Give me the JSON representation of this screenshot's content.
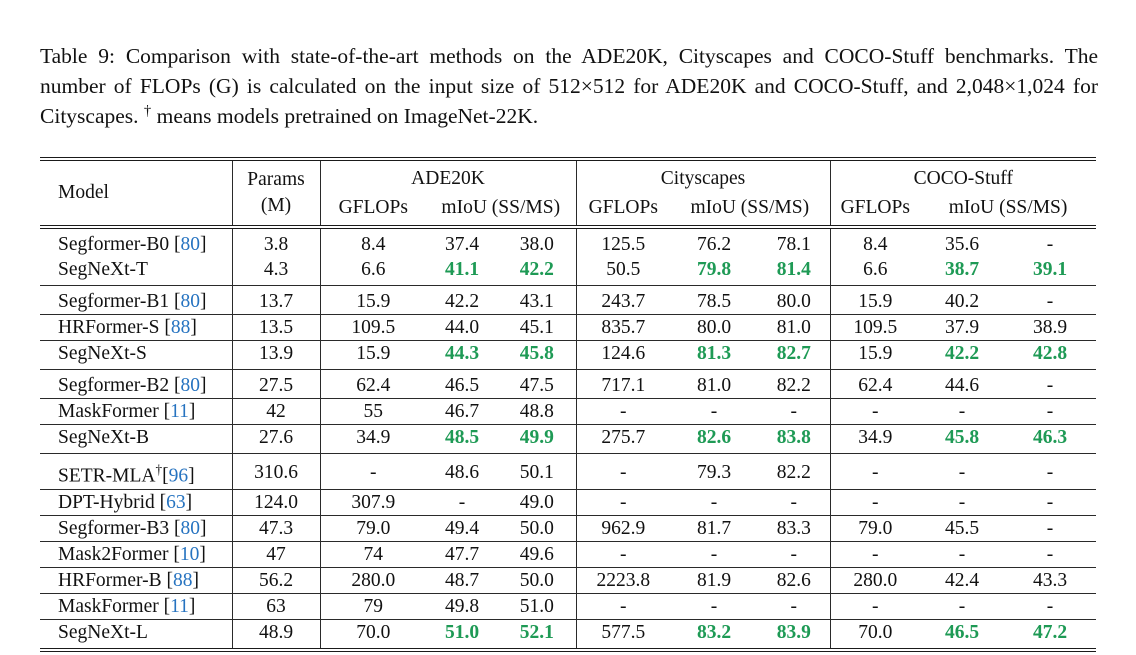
{
  "colors": {
    "highlight_green": "#1e9a55",
    "citation_blue": "#2673c0",
    "text": "#111111",
    "rule": "#2a2a2a",
    "background": "#ffffff"
  },
  "caption": {
    "label": "Table 9:",
    "body_1": " Comparison with state-of-the-art methods on the ADE20K, Cityscapes and COCO-Stuff benchmarks. The number of FLOPs (G) is calculated on the input size of 512×512 for ADE20K and COCO-Stuff, and 2,048×1,024 for Cityscapes. ",
    "dagger": "†",
    "body_2": " means models pretrained on ImageNet-22K."
  },
  "table": {
    "header": {
      "model": "Model",
      "params_line1": "Params",
      "params_line2": "(M)",
      "groups": [
        {
          "name": "ADE20K",
          "sub_gflops": "GFLOPs",
          "sub_miou": "mIoU (SS/MS)"
        },
        {
          "name": "Cityscapes",
          "sub_gflops": "GFLOPs",
          "sub_miou": "mIoU (SS/MS)"
        },
        {
          "name": "COCO-Stuff",
          "sub_gflops": "GFLOPs",
          "sub_miou": "mIoU (SS/MS)"
        }
      ]
    },
    "groups": [
      {
        "rows": [
          {
            "model": "Segformer-B0",
            "dagger": false,
            "cite": "80",
            "params": "3.8",
            "values": [
              "8.4",
              "37.4",
              "38.0",
              "125.5",
              "76.2",
              "78.1",
              "8.4",
              "35.6",
              "-"
            ],
            "hl": []
          },
          {
            "model": "SegNeXt-T",
            "dagger": false,
            "cite": null,
            "params": "4.3",
            "values": [
              "6.6",
              "41.1",
              "42.2",
              "50.5",
              "79.8",
              "81.4",
              "6.6",
              "38.7",
              "39.1"
            ],
            "hl": [
              1,
              2,
              4,
              5,
              7,
              8
            ]
          }
        ]
      },
      {
        "rows": [
          {
            "model": "Segformer-B1",
            "dagger": false,
            "cite": "80",
            "params": "13.7",
            "values": [
              "15.9",
              "42.2",
              "43.1",
              "243.7",
              "78.5",
              "80.0",
              "15.9",
              "40.2",
              "-"
            ],
            "hl": []
          },
          {
            "model": "HRFormer-S",
            "dagger": false,
            "cite": "88",
            "params": "13.5",
            "values": [
              "109.5",
              "44.0",
              "45.1",
              "835.7",
              "80.0",
              "81.0",
              "109.5",
              "37.9",
              "38.9"
            ],
            "hl": []
          },
          {
            "model": "SegNeXt-S",
            "dagger": false,
            "cite": null,
            "params": "13.9",
            "values": [
              "15.9",
              "44.3",
              "45.8",
              "124.6",
              "81.3",
              "82.7",
              "15.9",
              "42.2",
              "42.8"
            ],
            "hl": [
              1,
              2,
              4,
              5,
              7,
              8
            ]
          }
        ]
      },
      {
        "rows": [
          {
            "model": "Segformer-B2",
            "dagger": false,
            "cite": "80",
            "params": "27.5",
            "values": [
              "62.4",
              "46.5",
              "47.5",
              "717.1",
              "81.0",
              "82.2",
              "62.4",
              "44.6",
              "-"
            ],
            "hl": []
          },
          {
            "model": "MaskFormer",
            "dagger": false,
            "cite": "11",
            "params": "42",
            "values": [
              "55",
              "46.7",
              "48.8",
              "-",
              "-",
              "-",
              "-",
              "-",
              "-"
            ],
            "hl": []
          },
          {
            "model": "SegNeXt-B",
            "dagger": false,
            "cite": null,
            "params": "27.6",
            "values": [
              "34.9",
              "48.5",
              "49.9",
              "275.7",
              "82.6",
              "83.8",
              "34.9",
              "45.8",
              "46.3"
            ],
            "hl": [
              1,
              2,
              4,
              5,
              7,
              8
            ]
          }
        ]
      },
      {
        "rows": [
          {
            "model": "SETR-MLA",
            "dagger": true,
            "cite": "96",
            "params": "310.6",
            "values": [
              "-",
              "48.6",
              "50.1",
              "-",
              "79.3",
              "82.2",
              "-",
              "-",
              "-"
            ],
            "hl": []
          },
          {
            "model": "DPT-Hybrid",
            "dagger": false,
            "cite": "63",
            "params": "124.0",
            "values": [
              "307.9",
              "-",
              "49.0",
              "-",
              "-",
              "-",
              "-",
              "-",
              "-"
            ],
            "hl": []
          },
          {
            "model": "Segformer-B3",
            "dagger": false,
            "cite": "80",
            "params": "47.3",
            "values": [
              "79.0",
              "49.4",
              "50.0",
              "962.9",
              "81.7",
              "83.3",
              "79.0",
              "45.5",
              "-"
            ],
            "hl": []
          },
          {
            "model": "Mask2Former",
            "dagger": false,
            "cite": "10",
            "params": "47",
            "values": [
              "74",
              "47.7",
              "49.6",
              "-",
              "-",
              "-",
              "-",
              "-",
              "-"
            ],
            "hl": []
          },
          {
            "model": "HRFormer-B",
            "dagger": false,
            "cite": "88",
            "params": "56.2",
            "values": [
              "280.0",
              "48.7",
              "50.0",
              "2223.8",
              "81.9",
              "82.6",
              "280.0",
              "42.4",
              "43.3"
            ],
            "hl": []
          },
          {
            "model": "MaskFormer",
            "dagger": false,
            "cite": "11",
            "params": "63",
            "values": [
              "79",
              "49.8",
              "51.0",
              "-",
              "-",
              "-",
              "-",
              "-",
              "-"
            ],
            "hl": []
          },
          {
            "model": "SegNeXt-L",
            "dagger": false,
            "cite": null,
            "params": "48.9",
            "values": [
              "70.0",
              "51.0",
              "52.1",
              "577.5",
              "83.2",
              "83.9",
              "70.0",
              "46.5",
              "47.2"
            ],
            "hl": [
              1,
              2,
              4,
              5,
              7,
              8
            ]
          }
        ]
      }
    ]
  }
}
